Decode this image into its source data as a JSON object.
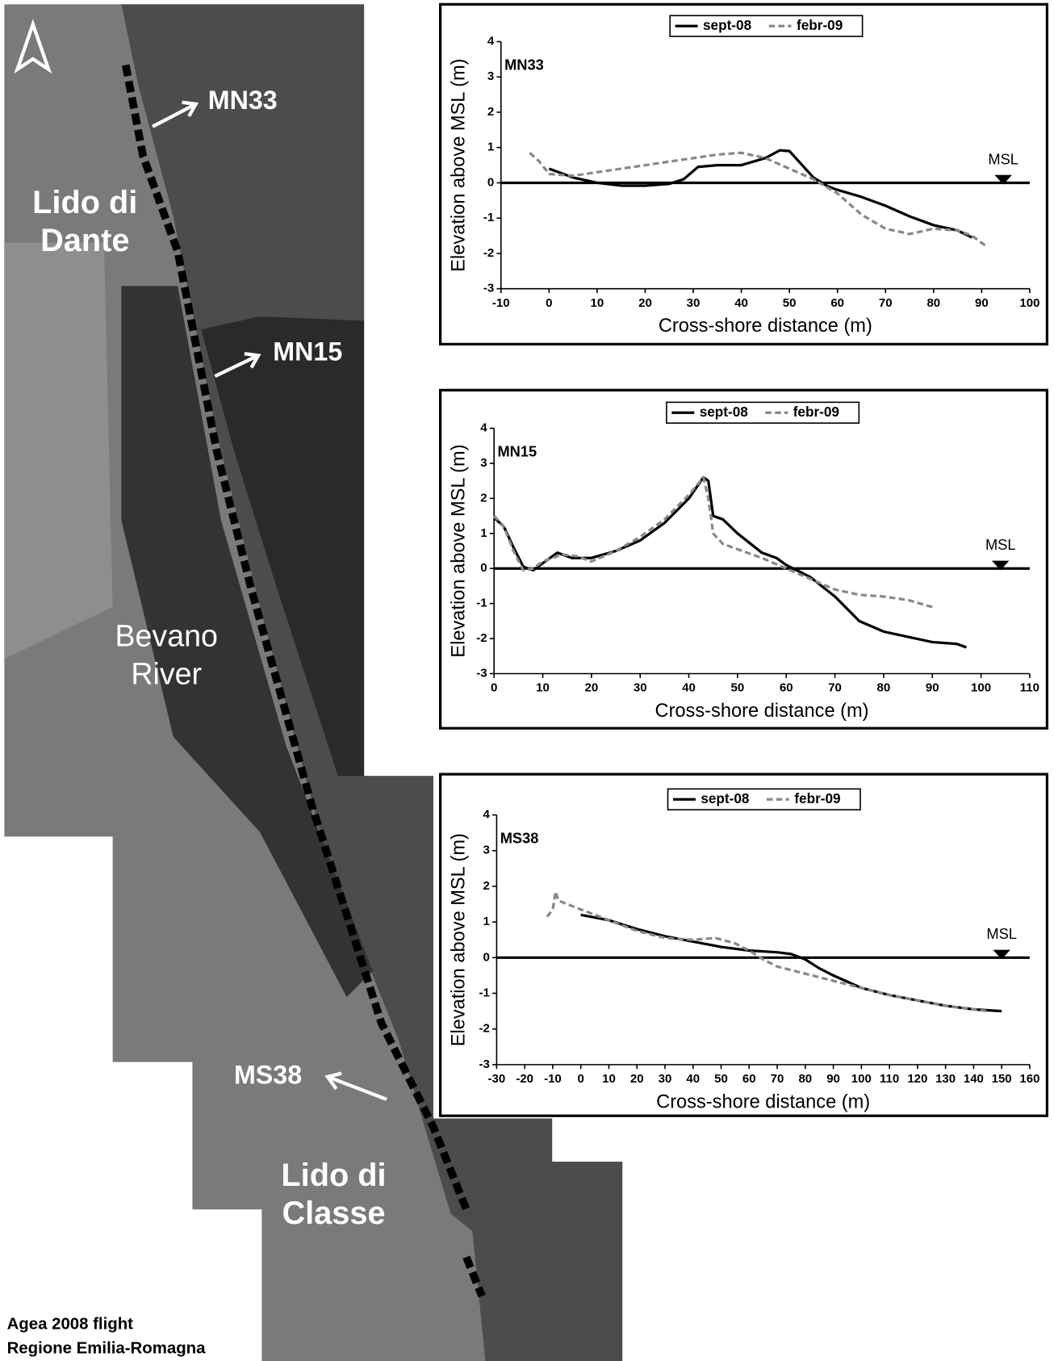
{
  "map": {
    "labels": [
      {
        "lines": [
          "MN33"
        ]
      },
      {
        "lines": [
          "MN15"
        ]
      },
      {
        "lines": [
          "Lido di",
          "Dante"
        ]
      },
      {
        "lines": [
          "Bevano",
          "River"
        ]
      },
      {
        "lines": [
          "MS38"
        ]
      },
      {
        "lines": [
          "Lido di",
          "Classe"
        ]
      }
    ],
    "credit": [
      "Agea 2008 flight",
      "Regione Emilia-Romagna"
    ]
  },
  "chart_data": [
    {
      "type": "line",
      "title": "MN33",
      "xlabel": "Cross-shore distance (m)",
      "ylabel": "Elevation above MSL (m)",
      "xlim": [
        -10,
        100
      ],
      "xticks": [
        -10,
        0,
        10,
        20,
        30,
        40,
        50,
        60,
        70,
        80,
        90,
        100
      ],
      "ylim": [
        -3,
        4
      ],
      "yticks": [
        -3,
        -2,
        -1,
        0,
        1,
        2,
        3,
        4
      ],
      "annotation": {
        "text": "MSL",
        "x": 94.5,
        "y": 0
      },
      "series": [
        {
          "name": "sept-08",
          "color": "#000000",
          "style": "solid",
          "x": [
            0,
            5,
            10,
            15,
            20,
            25,
            28,
            31,
            35,
            40,
            45,
            48,
            50,
            52,
            55,
            58,
            60,
            65,
            70,
            75,
            80,
            85,
            88
          ],
          "values": [
            0.4,
            0.15,
            0.0,
            -0.08,
            -0.08,
            -0.03,
            0.1,
            0.45,
            0.5,
            0.5,
            0.7,
            0.92,
            0.9,
            0.6,
            0.15,
            -0.1,
            -0.2,
            -0.4,
            -0.65,
            -0.95,
            -1.2,
            -1.35,
            -1.55
          ]
        },
        {
          "name": "febr-09",
          "color": "#888888",
          "style": "dashed",
          "x": [
            -4,
            -2,
            0,
            5,
            10,
            20,
            30,
            35,
            40,
            45,
            50,
            55,
            60,
            65,
            70,
            75,
            80,
            85,
            88,
            91
          ],
          "values": [
            0.85,
            0.6,
            0.25,
            0.2,
            0.3,
            0.5,
            0.7,
            0.8,
            0.85,
            0.7,
            0.4,
            0.1,
            -0.3,
            -0.9,
            -1.3,
            -1.45,
            -1.3,
            -1.35,
            -1.5,
            -1.8
          ]
        }
      ]
    },
    {
      "type": "line",
      "title": "MN15",
      "xlabel": "Cross-shore distance (m)",
      "ylabel": "Elevation above MSL (m)",
      "xlim": [
        0,
        110
      ],
      "xticks": [
        0,
        10,
        20,
        30,
        40,
        50,
        60,
        70,
        80,
        90,
        100,
        110
      ],
      "ylim": [
        -3,
        4
      ],
      "yticks": [
        -3,
        -2,
        -1,
        0,
        1,
        2,
        3,
        4
      ],
      "annotation": {
        "text": "MSL",
        "x": 104,
        "y": 0
      },
      "series": [
        {
          "name": "sept-08",
          "color": "#000000",
          "style": "solid",
          "x": [
            0,
            2,
            4,
            6,
            8,
            10,
            13,
            16,
            20,
            25,
            30,
            35,
            40,
            43,
            44,
            45,
            47,
            50,
            55,
            58,
            60,
            65,
            70,
            75,
            80,
            85,
            90,
            95,
            97
          ],
          "values": [
            1.45,
            1.2,
            0.6,
            0.05,
            -0.05,
            0.15,
            0.45,
            0.3,
            0.3,
            0.5,
            0.8,
            1.3,
            2.0,
            2.6,
            2.5,
            1.5,
            1.4,
            1.0,
            0.45,
            0.3,
            0.1,
            -0.25,
            -0.8,
            -1.5,
            -1.8,
            -1.95,
            -2.1,
            -2.15,
            -2.25
          ]
        },
        {
          "name": "febr-09",
          "color": "#888888",
          "style": "dashed",
          "x": [
            0,
            2,
            4,
            6,
            8,
            10,
            14,
            17,
            20,
            25,
            30,
            35,
            40,
            43,
            44,
            45,
            47,
            50,
            55,
            60,
            65,
            70,
            75,
            80,
            85,
            90
          ],
          "values": [
            1.5,
            1.2,
            0.5,
            -0.05,
            0.0,
            0.2,
            0.4,
            0.35,
            0.2,
            0.5,
            0.9,
            1.4,
            2.1,
            2.6,
            2.0,
            1.0,
            0.7,
            0.55,
            0.3,
            0.0,
            -0.3,
            -0.6,
            -0.75,
            -0.8,
            -0.9,
            -1.1
          ]
        }
      ]
    },
    {
      "type": "line",
      "title": "MS38",
      "xlabel": "Cross-shore distance (m)",
      "ylabel": "Elevation above MSL (m)",
      "xlim": [
        -30,
        160
      ],
      "xticks": [
        -30,
        -20,
        -10,
        0,
        10,
        20,
        30,
        40,
        50,
        60,
        70,
        80,
        90,
        100,
        110,
        120,
        130,
        140,
        150,
        160
      ],
      "ylim": [
        -3,
        4
      ],
      "yticks": [
        -3,
        -2,
        -1,
        0,
        1,
        2,
        3,
        4
      ],
      "annotation": {
        "text": "MSL",
        "x": 150,
        "y": 0
      },
      "series": [
        {
          "name": "sept-08",
          "color": "#000000",
          "style": "solid",
          "x": [
            0,
            10,
            20,
            30,
            40,
            50,
            60,
            70,
            75,
            80,
            85,
            90,
            100,
            110,
            120,
            130,
            140,
            150
          ],
          "values": [
            1.2,
            1.05,
            0.8,
            0.6,
            0.45,
            0.3,
            0.2,
            0.15,
            0.1,
            -0.05,
            -0.3,
            -0.5,
            -0.85,
            -1.05,
            -1.2,
            -1.35,
            -1.45,
            -1.5
          ]
        },
        {
          "name": "febr-09",
          "color": "#888888",
          "style": "dashed",
          "x": [
            -12,
            -10,
            -9,
            -8,
            0,
            10,
            20,
            30,
            40,
            48,
            55,
            60,
            65,
            70,
            80,
            90,
            100,
            110,
            120,
            130,
            140,
            145
          ],
          "values": [
            1.15,
            1.35,
            1.85,
            1.6,
            1.35,
            1.05,
            0.75,
            0.55,
            0.5,
            0.55,
            0.4,
            0.2,
            -0.05,
            -0.25,
            -0.45,
            -0.65,
            -0.85,
            -1.05,
            -1.2,
            -1.35,
            -1.45,
            -1.5
          ]
        }
      ]
    }
  ]
}
